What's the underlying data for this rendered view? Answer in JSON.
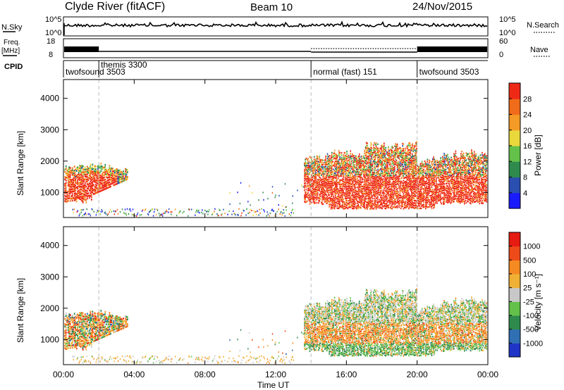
{
  "chart_data": {
    "type": "heatmap",
    "title": {
      "station": "Clyde River (fitACF)",
      "beam": "Beam 10",
      "date": "24/Nov/2015"
    },
    "xlabel": "Time UT",
    "x_ticks": [
      "00:00",
      "04:00",
      "08:00",
      "12:00",
      "16:00",
      "20:00",
      "00:00"
    ],
    "x_range_hours": [
      0,
      24
    ],
    "noise_panel": {
      "left_label": "N.Sky",
      "left_ticks": [
        "10^5",
        "10^0"
      ],
      "right_label": "N.Search",
      "right_ticks": [
        "10^5",
        "10^0"
      ]
    },
    "freq_panel": {
      "left_label_1": "Freq.",
      "left_label_2": "[MHz]",
      "left_ticks": [
        "18",
        "8"
      ],
      "right_label": "Nave",
      "right_ticks": [
        "60",
        "0"
      ]
    },
    "cpid_panel": {
      "label": "CPID",
      "segments": [
        {
          "name": "twofsound 3503",
          "start_hour": 0.0,
          "end_hour": 2.0
        },
        {
          "name": "themis 3300",
          "start_hour": 2.0,
          "end_hour": 14.0
        },
        {
          "name": "normal (fast) 151",
          "start_hour": 14.0,
          "end_hour": 20.0
        },
        {
          "name": "twofsound 3503",
          "start_hour": 20.0,
          "end_hour": 24.0
        }
      ]
    },
    "power_panel": {
      "ylabel": "Slant Range [km]",
      "y_ticks": [
        "4000",
        "3000",
        "2000",
        "1000"
      ],
      "ylim": [
        200,
        4600
      ],
      "colorbar_label": "Power [dB]",
      "colorbar_ticks": [
        "28",
        "24",
        "20",
        "16",
        "12",
        "8",
        "4"
      ],
      "colors": [
        "#1a1aff",
        "#2a4fb0",
        "#2f8a4e",
        "#63c14a",
        "#e9d83c",
        "#f49a26",
        "#f06b1a",
        "#ee2a17"
      ]
    },
    "velocity_panel": {
      "ylabel": "Slant Range [km]",
      "y_ticks": [
        "4000",
        "3000",
        "2000",
        "1000"
      ],
      "ylim": [
        200,
        4600
      ],
      "colorbar_label": "Velocity [m s⁻¹]",
      "colorbar_ticks": [
        "1000",
        "500",
        "100",
        "25",
        "-25",
        "-100",
        "-500",
        "-1000"
      ],
      "colors": [
        "#2035c8",
        "#2f6fb4",
        "#2f8a4e",
        "#63c14a",
        "#c8c8c8",
        "#f0b035",
        "#f58a22",
        "#ee4a1a",
        "#e61b12"
      ]
    },
    "scatter_regions": [
      {
        "panel": "both",
        "start_hour": 0.0,
        "end_hour": 3.6,
        "range_km": [
          650,
          1850
        ],
        "kind": "ionospheric"
      },
      {
        "panel": "both",
        "start_hour": 13.6,
        "end_hour": 24.0,
        "range_km": [
          500,
          2400
        ],
        "kind": "ionospheric"
      },
      {
        "panel": "both",
        "start_hour": 0.5,
        "end_hour": 13.0,
        "range_km": [
          200,
          500
        ],
        "kind": "ground"
      }
    ]
  }
}
